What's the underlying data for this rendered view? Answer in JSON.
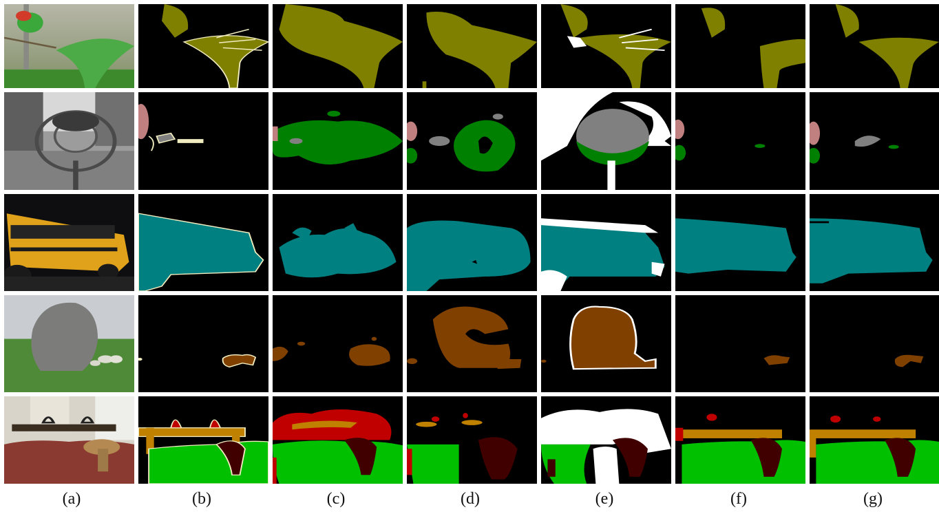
{
  "figure": {
    "column_labels": [
      "(a)",
      "(b)",
      "(c)",
      "(d)",
      "(e)",
      "(f)",
      "(g)"
    ],
    "rows": [
      {
        "scene": "parrot",
        "class_color": "#808000"
      },
      {
        "scene": "street-sculpture",
        "class_colors": [
          "#808080",
          "#008000",
          "#c08080"
        ]
      },
      {
        "scene": "bus",
        "class_color": "#008080"
      },
      {
        "scene": "rock-sheep",
        "class_color": "#804000"
      },
      {
        "scene": "dining-room-cat",
        "class_colors": [
          "#c08000",
          "#00c000",
          "#400000",
          "#c00000"
        ]
      }
    ]
  }
}
